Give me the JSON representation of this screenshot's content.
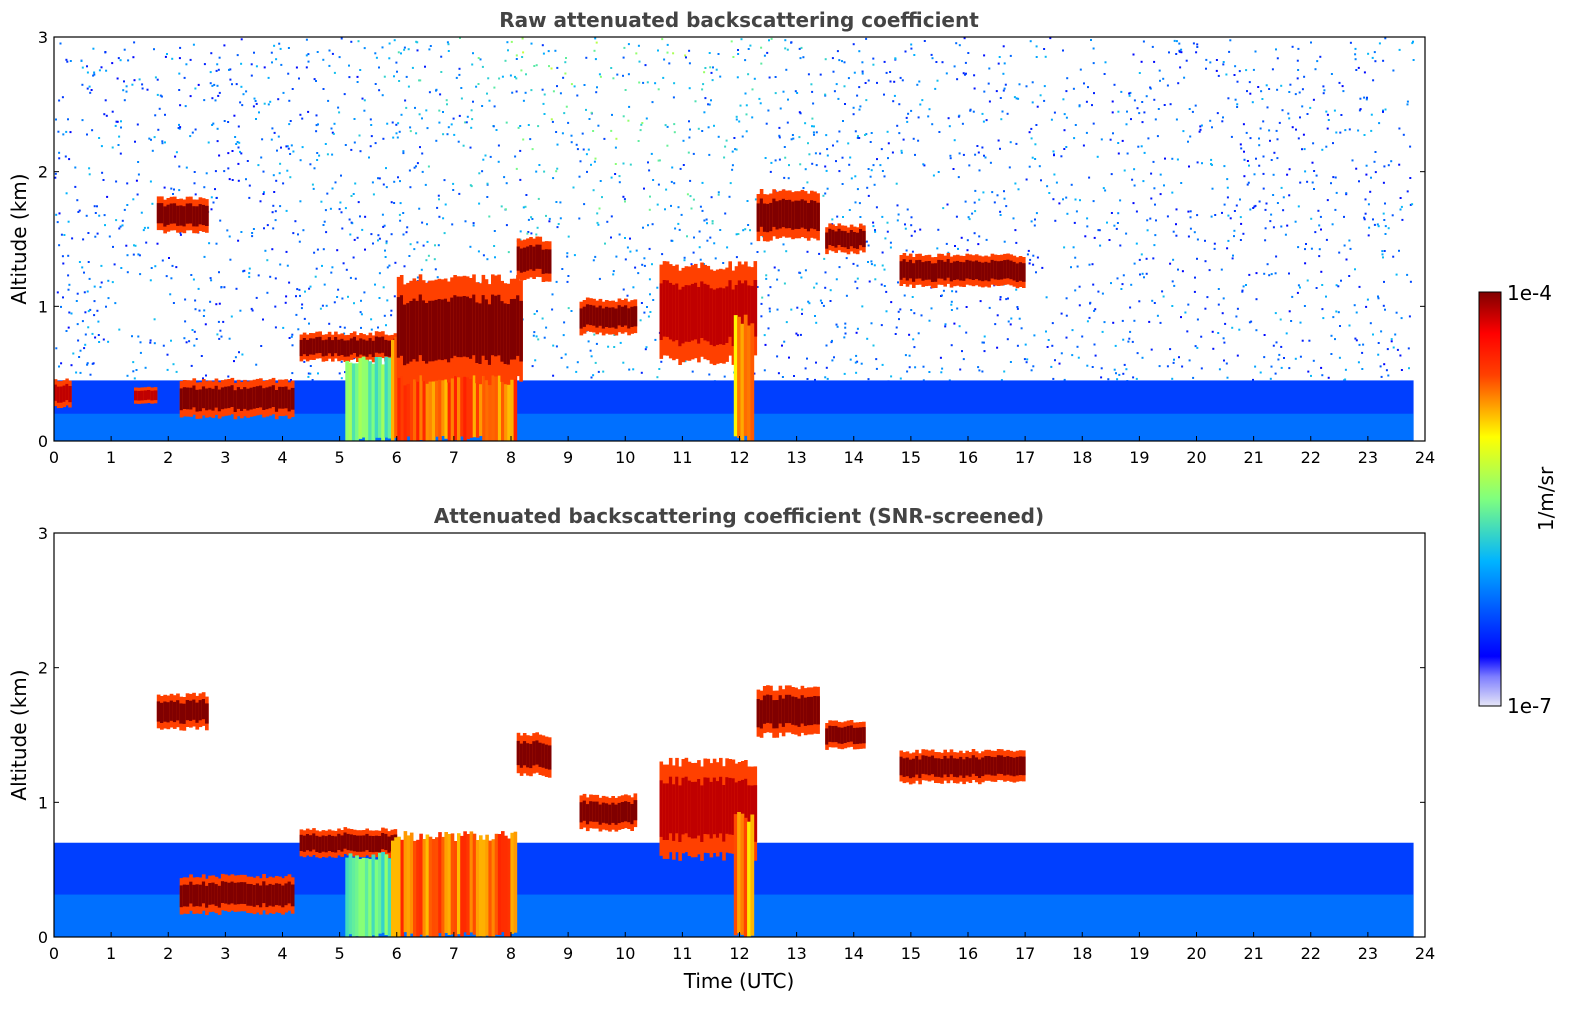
{
  "chart_data": [
    {
      "type": "heatmap",
      "title": "Raw attenuated backscattering coefficient",
      "xlabel": "",
      "ylabel": "Altitude (km)",
      "xlim": [
        0,
        24
      ],
      "ylim": [
        0,
        3
      ],
      "xticks": [
        "0",
        "1",
        "2",
        "3",
        "4",
        "5",
        "6",
        "7",
        "8",
        "9",
        "10",
        "11",
        "12",
        "13",
        "14",
        "15",
        "16",
        "17",
        "18",
        "19",
        "20",
        "21",
        "22",
        "23",
        "24"
      ],
      "yticks": [
        "0",
        "1",
        "2",
        "3"
      ],
      "data_end_hour": 23.8,
      "features": [
        {
          "kind": "boundary_layer",
          "t0": 0,
          "t1": 23.8,
          "top_km": 0.45,
          "level": 0.25
        },
        {
          "kind": "cloud",
          "t0": 1.8,
          "t1": 2.7,
          "z0_km": 1.55,
          "z1_km": 1.8,
          "level": 1.0
        },
        {
          "kind": "cloud",
          "t0": 0.0,
          "t1": 0.3,
          "z0_km": 0.25,
          "z1_km": 0.45,
          "level": 0.95
        },
        {
          "kind": "cloud",
          "t0": 1.4,
          "t1": 1.8,
          "z0_km": 0.28,
          "z1_km": 0.4,
          "level": 0.95
        },
        {
          "kind": "cloud",
          "t0": 2.2,
          "t1": 4.2,
          "z0_km": 0.18,
          "z1_km": 0.45,
          "level": 1.0
        },
        {
          "kind": "cloud",
          "t0": 4.3,
          "t1": 6.0,
          "z0_km": 0.6,
          "z1_km": 0.8,
          "level": 1.0
        },
        {
          "kind": "precip",
          "t0": 5.1,
          "t1": 5.9,
          "z0_km": 0.0,
          "z1_km": 0.6,
          "level": 0.55
        },
        {
          "kind": "precip",
          "t0": 5.9,
          "t1": 8.1,
          "z0_km": 0.0,
          "z1_km": 0.75,
          "level": 0.85
        },
        {
          "kind": "cloud",
          "t0": 6.0,
          "t1": 8.2,
          "z0_km": 0.45,
          "z1_km": 1.2,
          "level": 1.0
        },
        {
          "kind": "cloud",
          "t0": 8.1,
          "t1": 8.7,
          "z0_km": 1.2,
          "z1_km": 1.5,
          "level": 1.0
        },
        {
          "kind": "cloud",
          "t0": 9.2,
          "t1": 10.2,
          "z0_km": 0.8,
          "z1_km": 1.05,
          "level": 1.0
        },
        {
          "kind": "cloud",
          "t0": 10.6,
          "t1": 12.3,
          "z0_km": 0.6,
          "z1_km": 1.3,
          "level": 0.95
        },
        {
          "kind": "precip",
          "t0": 11.9,
          "t1": 12.25,
          "z0_km": 0.0,
          "z1_km": 0.9,
          "level": 0.8
        },
        {
          "kind": "cloud",
          "t0": 12.3,
          "t1": 13.4,
          "z0_km": 1.5,
          "z1_km": 1.85,
          "level": 1.0
        },
        {
          "kind": "cloud",
          "t0": 13.5,
          "t1": 14.2,
          "z0_km": 1.4,
          "z1_km": 1.6,
          "level": 1.0
        },
        {
          "kind": "cloud",
          "t0": 14.8,
          "t1": 17.0,
          "z0_km": 1.15,
          "z1_km": 1.38,
          "level": 1.0
        }
      ],
      "noise_aloft": true
    },
    {
      "type": "heatmap",
      "title": "Attenuated backscattering coefficient (SNR-screened)",
      "xlabel": "Time (UTC)",
      "ylabel": "Altitude (km)",
      "xlim": [
        0,
        24
      ],
      "ylim": [
        0,
        3
      ],
      "xticks": [
        "0",
        "1",
        "2",
        "3",
        "4",
        "5",
        "6",
        "7",
        "8",
        "9",
        "10",
        "11",
        "12",
        "13",
        "14",
        "15",
        "16",
        "17",
        "18",
        "19",
        "20",
        "21",
        "22",
        "23",
        "24"
      ],
      "yticks": [
        "0",
        "1",
        "2",
        "3"
      ],
      "data_end_hour": 23.8,
      "features": [
        {
          "kind": "boundary_layer",
          "t0": 0,
          "t1": 23.8,
          "top_km": 0.7,
          "level": 0.25
        },
        {
          "kind": "cloud",
          "t0": 1.8,
          "t1": 2.7,
          "z0_km": 1.55,
          "z1_km": 1.8,
          "level": 1.0
        },
        {
          "kind": "cloud",
          "t0": 2.2,
          "t1": 4.2,
          "z0_km": 0.18,
          "z1_km": 0.45,
          "level": 1.0
        },
        {
          "kind": "cloud",
          "t0": 4.3,
          "t1": 6.0,
          "z0_km": 0.6,
          "z1_km": 0.8,
          "level": 1.0
        },
        {
          "kind": "precip",
          "t0": 5.1,
          "t1": 5.9,
          "z0_km": 0.0,
          "z1_km": 0.6,
          "level": 0.55
        },
        {
          "kind": "precip",
          "t0": 5.9,
          "t1": 8.1,
          "z0_km": 0.0,
          "z1_km": 0.75,
          "level": 0.85
        },
        {
          "kind": "cloud",
          "t0": 8.1,
          "t1": 8.7,
          "z0_km": 1.2,
          "z1_km": 1.5,
          "level": 1.0
        },
        {
          "kind": "cloud",
          "t0": 9.2,
          "t1": 10.2,
          "z0_km": 0.8,
          "z1_km": 1.05,
          "level": 1.0
        },
        {
          "kind": "cloud",
          "t0": 10.6,
          "t1": 12.3,
          "z0_km": 0.6,
          "z1_km": 1.3,
          "level": 0.95
        },
        {
          "kind": "precip",
          "t0": 11.9,
          "t1": 12.25,
          "z0_km": 0.0,
          "z1_km": 0.9,
          "level": 0.8
        },
        {
          "kind": "cloud",
          "t0": 12.3,
          "t1": 13.4,
          "z0_km": 1.5,
          "z1_km": 1.85,
          "level": 1.0
        },
        {
          "kind": "cloud",
          "t0": 13.5,
          "t1": 14.2,
          "z0_km": 1.4,
          "z1_km": 1.6,
          "level": 1.0
        },
        {
          "kind": "cloud",
          "t0": 14.8,
          "t1": 17.0,
          "z0_km": 1.15,
          "z1_km": 1.38,
          "level": 1.0
        }
      ],
      "noise_aloft": false
    }
  ],
  "colorbar": {
    "label": "1/m/sr",
    "max_label": "1e-4",
    "min_label": "1e-7",
    "scale": "log",
    "colormap": "jet",
    "colors": [
      "#e6e6f7",
      "#0000ff",
      "#00b4ff",
      "#7fff7f",
      "#ffb400",
      "#ff0000",
      "#800000"
    ]
  }
}
